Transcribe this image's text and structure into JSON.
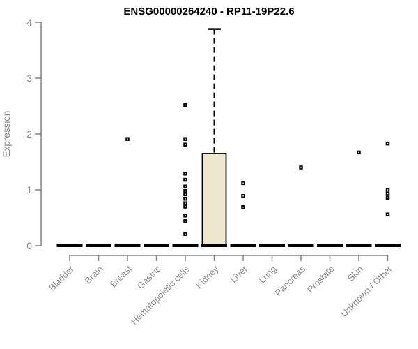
{
  "page": {
    "background": "#ffffff"
  },
  "chart_data": {
    "type": "boxplot",
    "title": "ENSG00000264240 - RP11-19P22.6",
    "ylabel": "Expression",
    "xlabel": "",
    "ylim": [
      0,
      4
    ],
    "yticks": [
      0,
      1,
      2,
      3,
      4
    ],
    "grid": false,
    "legend": "none",
    "categories": [
      "Bladder",
      "Brain",
      "Breast",
      "Gastric",
      "Hematopoietic cells",
      "Kidney",
      "Liver",
      "Lung",
      "Pancreas",
      "Prostate",
      "Skin",
      "Unknown / Other"
    ],
    "boxes": [
      {
        "category": "Bladder",
        "median": 0,
        "q1": 0,
        "q3": 0,
        "whisker_low": 0,
        "whisker_high": 0,
        "outliers": []
      },
      {
        "category": "Brain",
        "median": 0,
        "q1": 0,
        "q3": 0,
        "whisker_low": 0,
        "whisker_high": 0,
        "outliers": []
      },
      {
        "category": "Breast",
        "median": 0,
        "q1": 0,
        "q3": 0,
        "whisker_low": 0,
        "whisker_high": 0,
        "outliers": [
          1.91
        ]
      },
      {
        "category": "Gastric",
        "median": 0,
        "q1": 0,
        "q3": 0,
        "whisker_low": 0,
        "whisker_high": 0,
        "outliers": []
      },
      {
        "category": "Hematopoietic cells",
        "median": 0,
        "q1": 0,
        "q3": 0,
        "whisker_low": 0,
        "whisker_high": 0,
        "outliers": [
          2.52,
          1.91,
          1.81,
          1.29,
          1.18,
          1.06,
          0.98,
          0.92,
          0.84,
          0.76,
          0.7,
          0.54,
          0.44,
          0.21
        ]
      },
      {
        "category": "Kidney",
        "median": 0,
        "q1": 0,
        "q3": 1.65,
        "whisker_low": 0,
        "whisker_high": 3.88,
        "outliers": []
      },
      {
        "category": "Liver",
        "median": 0,
        "q1": 0,
        "q3": 0,
        "whisker_low": 0,
        "whisker_high": 0,
        "outliers": [
          1.12,
          0.89,
          0.69
        ]
      },
      {
        "category": "Lung",
        "median": 0,
        "q1": 0,
        "q3": 0,
        "whisker_low": 0,
        "whisker_high": 0,
        "outliers": []
      },
      {
        "category": "Pancreas",
        "median": 0,
        "q1": 0,
        "q3": 0,
        "whisker_low": 0,
        "whisker_high": 0,
        "outliers": [
          1.4
        ]
      },
      {
        "category": "Prostate",
        "median": 0,
        "q1": 0,
        "q3": 0,
        "whisker_low": 0,
        "whisker_high": 0,
        "outliers": []
      },
      {
        "category": "Skin",
        "median": 0,
        "q1": 0,
        "q3": 0,
        "whisker_low": 0,
        "whisker_high": 0,
        "outliers": [
          1.67
        ]
      },
      {
        "category": "Unknown / Other",
        "median": 0,
        "q1": 0,
        "q3": 0,
        "whisker_low": 0,
        "whisker_high": 0,
        "outliers": [
          1.83,
          1.0,
          0.93,
          0.86,
          0.56
        ]
      }
    ],
    "colors": {
      "box_fill": "#ECE7CD",
      "box_stroke": "#000000",
      "median": "#000000",
      "axis": "#848484",
      "tick_text": "#8b8b8b",
      "title": "#000000",
      "outlier_stroke": "#000000",
      "outlier_fill": "#ffffff"
    }
  }
}
